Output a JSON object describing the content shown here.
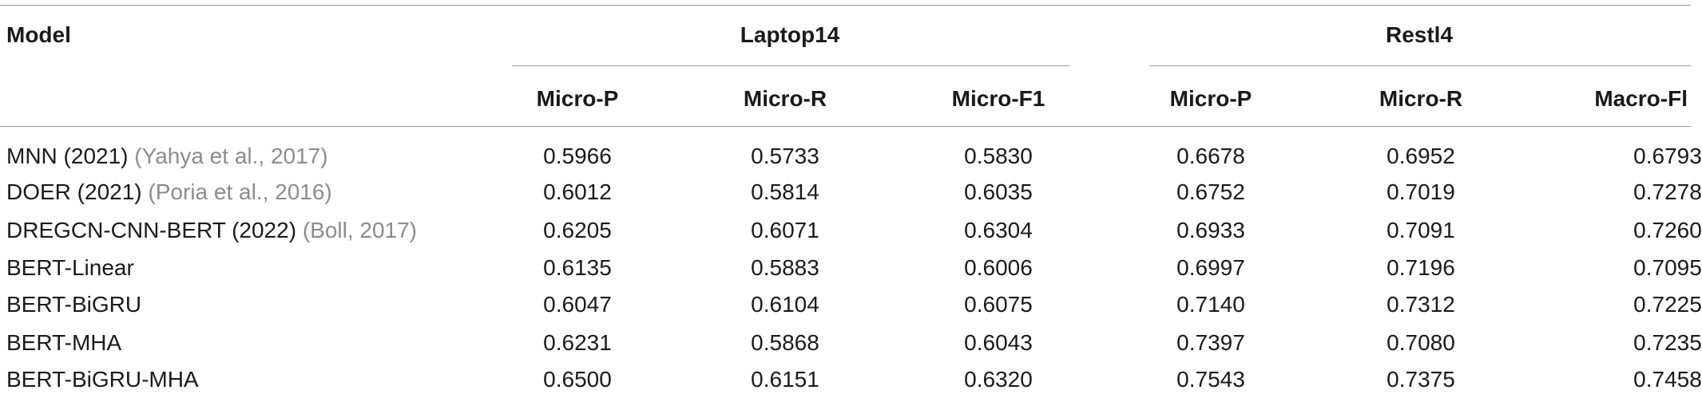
{
  "table": {
    "header": {
      "model": "Model",
      "groups": [
        "Laptop14",
        "Restl4"
      ],
      "subheaders": [
        "Micro-P",
        "Micro-R",
        "Micro-F1",
        "Micro-P",
        "Micro-R",
        "Macro-Fl"
      ]
    },
    "rows": [
      {
        "model": "MNN (2021)",
        "cite": "(Yahya et al., 2017)",
        "values": [
          "0.5966",
          "0.5733",
          "0.5830",
          "0.6678",
          "0.6952",
          "0.6793"
        ]
      },
      {
        "model": "DOER (2021)",
        "cite": "(Poria et al., 2016)",
        "values": [
          "0.6012",
          "0.5814",
          "0.6035",
          "0.6752",
          "0.7019",
          "0.7278"
        ]
      },
      {
        "model": "DREGCN-CNN-BERT (2022)",
        "cite": "(Boll, 2017)",
        "values": [
          "0.6205",
          "0.6071",
          "0.6304",
          "0.6933",
          "0.7091",
          "0.7260"
        ]
      },
      {
        "model": "BERT-Linear",
        "cite": "",
        "values": [
          "0.6135",
          "0.5883",
          "0.6006",
          "0.6997",
          "0.7196",
          "0.7095"
        ]
      },
      {
        "model": "BERT-BiGRU",
        "cite": "",
        "values": [
          "0.6047",
          "0.6104",
          "0.6075",
          "0.7140",
          "0.7312",
          "0.7225"
        ]
      },
      {
        "model": "BERT-MHA",
        "cite": "",
        "values": [
          "0.6231",
          "0.5868",
          "0.6043",
          "0.7397",
          "0.7080",
          "0.7235"
        ]
      },
      {
        "model": "BERT-BiGRU-MHA",
        "cite": "",
        "values": [
          "0.6500",
          "0.6151",
          "0.6320",
          "0.7543",
          "0.7375",
          "0.7458"
        ]
      }
    ]
  }
}
